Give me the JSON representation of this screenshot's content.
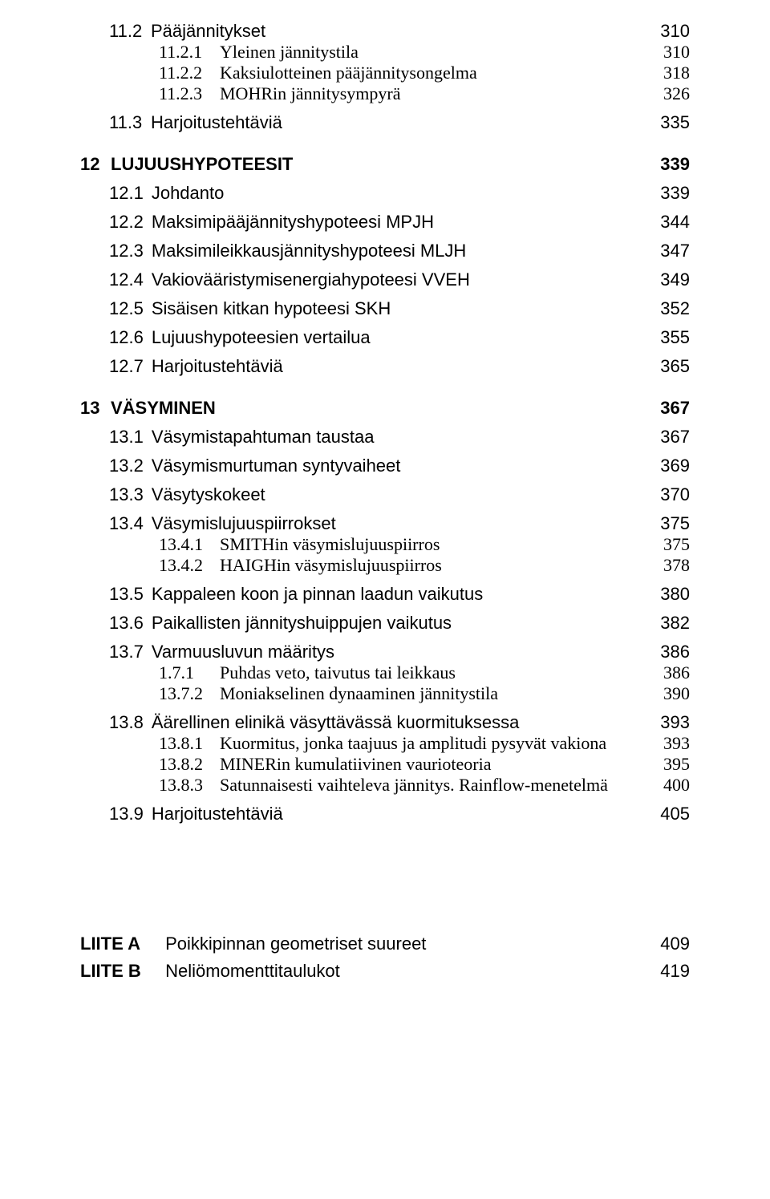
{
  "s11_2": {
    "num": "11.2",
    "title": "Pääjännitykset",
    "page": "310"
  },
  "s11_2_1": {
    "num": "11.2.1",
    "title": "Yleinen jännitystila",
    "page": "310"
  },
  "s11_2_2": {
    "num": "11.2.2",
    "title": "Kaksiulotteinen pääjännitysongelma",
    "page": "318"
  },
  "s11_2_3": {
    "num": "11.2.3",
    "title": "MOHRin jännitysympyrä",
    "page": "326"
  },
  "s11_3": {
    "num": "11.3",
    "title": "Harjoitustehtäviä",
    "page": "335"
  },
  "c12": {
    "num": "12",
    "title": "LUJUUSHYPOTEESIT",
    "page": "339"
  },
  "s12_1": {
    "num": "12.1",
    "title": "Johdanto",
    "page": "339"
  },
  "s12_2": {
    "num": "12.2",
    "title": "Maksimipääjännityshypoteesi MPJH",
    "page": "344"
  },
  "s12_3": {
    "num": "12.3",
    "title": "Maksimileikkausjännityshypoteesi MLJH",
    "page": "347"
  },
  "s12_4": {
    "num": "12.4",
    "title": "Vakiovääristymisenergiahypoteesi VVEH",
    "page": "349"
  },
  "s12_5": {
    "num": "12.5",
    "title": "Sisäisen kitkan hypoteesi SKH",
    "page": "352"
  },
  "s12_6": {
    "num": "12.6",
    "title": "Lujuushypoteesien vertailua",
    "page": "355"
  },
  "s12_7": {
    "num": "12.7",
    "title": "Harjoitustehtäviä",
    "page": "365"
  },
  "c13": {
    "num": "13",
    "title": "VÄSYMINEN",
    "page": "367"
  },
  "s13_1": {
    "num": "13.1",
    "title": "Väsymistapahtuman taustaa",
    "page": "367"
  },
  "s13_2": {
    "num": "13.2",
    "title": "Väsymismurtuman syntyvaiheet",
    "page": "369"
  },
  "s13_3": {
    "num": "13.3",
    "title": "Väsytyskokeet",
    "page": "370"
  },
  "s13_4": {
    "num": "13.4",
    "title": "Väsymislujuuspiirrokset",
    "page": "375"
  },
  "s13_4_1": {
    "num": "13.4.1",
    "title": "SMITHin väsymislujuuspiirros",
    "page": "375"
  },
  "s13_4_2": {
    "num": "13.4.2",
    "title": "HAIGHin väsymislujuuspiirros",
    "page": "378"
  },
  "s13_5": {
    "num": "13.5",
    "title": "Kappaleen koon ja pinnan laadun vaikutus",
    "page": "380"
  },
  "s13_6": {
    "num": "13.6",
    "title": "Paikallisten jännityshuippujen vaikutus",
    "page": "382"
  },
  "s13_7": {
    "num": "13.7",
    "title": "Varmuusluvun määritys",
    "page": "386"
  },
  "s13_7_1": {
    "num": "1.7.1",
    "title": "Puhdas veto, taivutus tai leikkaus",
    "page": "386"
  },
  "s13_7_2": {
    "num": "13.7.2",
    "title": "Moniakselinen dynaaminen jännitystila",
    "page": "390"
  },
  "s13_8": {
    "num": "13.8",
    "title": "Äärellinen elinikä väsyttävässä kuormituksessa",
    "page": "393"
  },
  "s13_8_1": {
    "num": "13.8.1",
    "title": "Kuormitus, jonka taajuus ja amplitudi pysyvät vakiona",
    "page": "393"
  },
  "s13_8_2": {
    "num": "13.8.2",
    "title": "MINERin kumulatiivinen vaurioteoria",
    "page": "395"
  },
  "s13_8_3": {
    "num": "13.8.3",
    "title": "Satunnaisesti vaihteleva jännitys. Rainflow-menetelmä",
    "page": "400"
  },
  "s13_9": {
    "num": "13.9",
    "title": "Harjoitustehtäviä",
    "page": "405"
  },
  "appA": {
    "label": "LIITE A",
    "title": "Poikkipinnan geometriset suureet",
    "page": "409"
  },
  "appB": {
    "label": "LIITE B",
    "title": "Neliömomenttitaulukot",
    "page": "419"
  }
}
